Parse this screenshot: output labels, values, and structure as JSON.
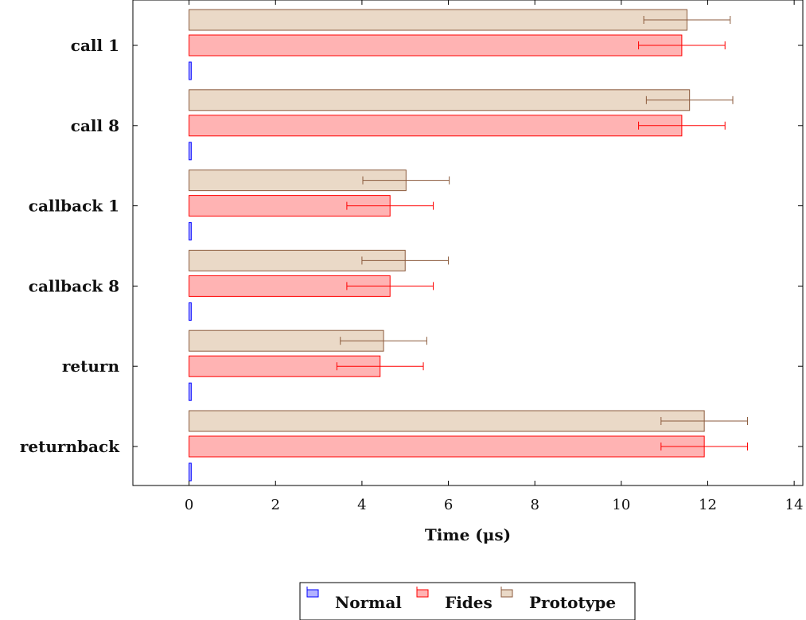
{
  "chart_data": {
    "type": "bar",
    "orientation": "horizontal",
    "categories": [
      "call 1",
      "call 8",
      "callback 1",
      "callback 8",
      "return",
      "returnback"
    ],
    "xlabel": "Time (μs)",
    "ylabel": "",
    "xlim": [
      -1.3,
      14.2
    ],
    "xticks": [
      0,
      2,
      4,
      6,
      8,
      10,
      12,
      14
    ],
    "grid": false,
    "legend_position": "bottom-center",
    "series": [
      {
        "name": "Normal",
        "color": "#0000ff",
        "fill": "#b3b3ff",
        "values": [
          0.05,
          0.05,
          0.05,
          0.05,
          0.05,
          0.05
        ],
        "errors": [
          0,
          0,
          0,
          0,
          0,
          0
        ]
      },
      {
        "name": "Fides",
        "color": "#ff0000",
        "fill": "#ffb3b3",
        "values": [
          11.4,
          11.4,
          4.65,
          4.65,
          4.42,
          11.92
        ],
        "errors": [
          1.0,
          1.0,
          1.0,
          1.0,
          1.0,
          1.0
        ]
      },
      {
        "name": "Prototype",
        "color": "#8b5a3c",
        "fill": "#ead9c7",
        "values": [
          11.52,
          11.58,
          5.02,
          5.0,
          4.5,
          11.92
        ],
        "errors": [
          1.0,
          1.0,
          1.0,
          1.0,
          1.0,
          1.0
        ]
      }
    ]
  }
}
